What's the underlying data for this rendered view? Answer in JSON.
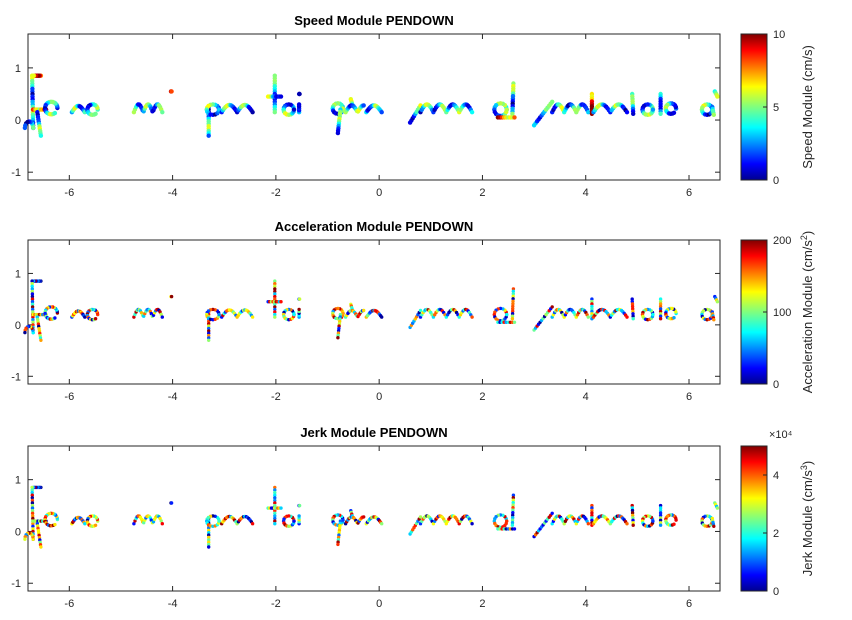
{
  "chart_data": [
    {
      "type": "scatter",
      "title": "Speed Module PENDOWN",
      "xlim": [
        -6.8,
        6.6
      ],
      "ylim": [
        -1.15,
        1.65
      ],
      "xticks": [
        -6,
        -4,
        -2,
        0,
        2,
        4,
        6
      ],
      "yticks": [
        -1,
        0,
        1
      ],
      "colorbar": {
        "label": "Speed Module (cm/s)",
        "label_sup": "",
        "label_end": "",
        "range": [
          0,
          10
        ],
        "ticks": [
          0,
          5,
          10
        ],
        "multiplier": ""
      },
      "text_shown": "Je ne suis pour toi qu'un renard semblable à",
      "mark": "stroke"
    },
    {
      "type": "scatter",
      "title": "Acceleration Module PENDOWN",
      "xlim": [
        -6.8,
        6.6
      ],
      "ylim": [
        -1.15,
        1.65
      ],
      "xticks": [
        -6,
        -4,
        -2,
        0,
        2,
        4,
        6
      ],
      "yticks": [
        -1,
        0,
        1
      ],
      "colorbar": {
        "label": "Acceleration Module (cm/s",
        "label_sup": "2",
        "label_end": ")",
        "range": [
          0,
          200
        ],
        "ticks": [
          0,
          100,
          200
        ],
        "multiplier": ""
      },
      "text_shown": "Je ne suis pour toi qu'un renard semblable à",
      "mark": "dots"
    },
    {
      "type": "scatter",
      "title": "Jerk Module PENDOWN",
      "xlim": [
        -6.8,
        6.6
      ],
      "ylim": [
        -1.15,
        1.65
      ],
      "xticks": [
        -6,
        -4,
        -2,
        0,
        2,
        4,
        6
      ],
      "yticks": [
        -1,
        0,
        1
      ],
      "colorbar": {
        "label": "Jerk Module (cm/s",
        "label_sup": "3",
        "label_end": ")",
        "range": [
          0,
          5
        ],
        "ticks": [
          0,
          2,
          4
        ],
        "multiplier": "×10⁴"
      },
      "text_shown": "Je ne suis pour toi qu'un renard semblable à",
      "mark": "dots"
    }
  ],
  "colormap": "jet"
}
